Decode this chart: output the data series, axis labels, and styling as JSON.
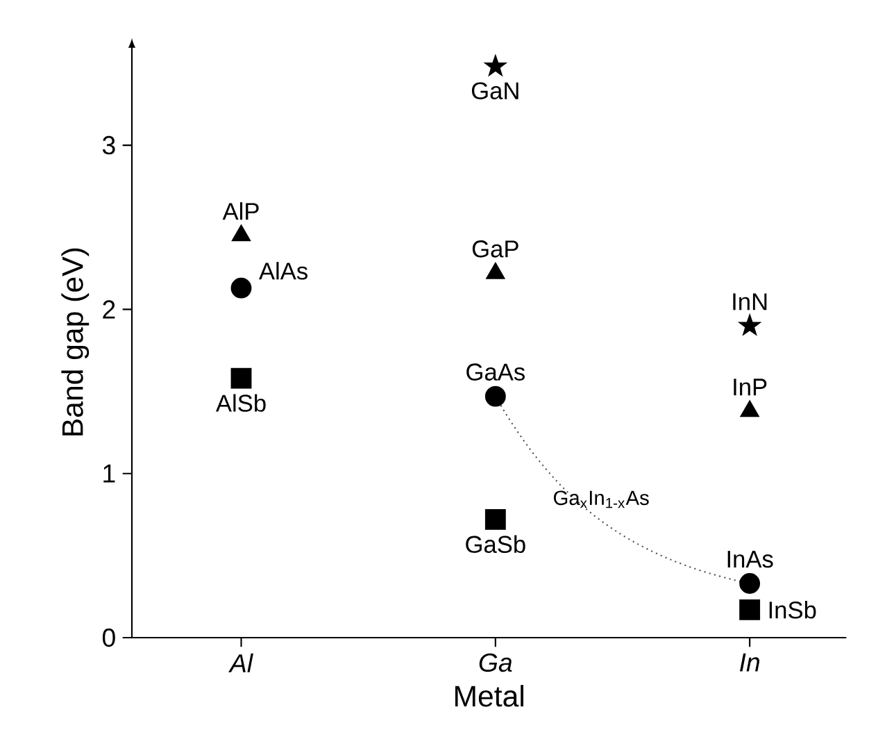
{
  "chart_data": {
    "type": "scatter",
    "xlabel": "Metal",
    "ylabel": "Band gap (eV)",
    "ylim": [
      0,
      3.6
    ],
    "categories": [
      "Al",
      "Ga",
      "In"
    ],
    "yticks": [
      0,
      1,
      2,
      3
    ],
    "grid": false,
    "series": [
      {
        "name": "AlP",
        "color": "#000000",
        "marker": "triangle",
        "values": [
          2.45,
          null,
          null
        ]
      },
      {
        "name": "AlAs",
        "color": "#000000",
        "marker": "circle",
        "values": [
          2.13,
          null,
          null
        ]
      },
      {
        "name": "AlSb",
        "color": "#000000",
        "marker": "square",
        "values": [
          1.58,
          null,
          null
        ]
      },
      {
        "name": "GaN",
        "color": "#000000",
        "marker": "star",
        "values": [
          null,
          3.48,
          null
        ]
      },
      {
        "name": "GaP",
        "color": "#000000",
        "marker": "triangle",
        "values": [
          null,
          2.22,
          null
        ]
      },
      {
        "name": "GaAs",
        "color": "#000000",
        "marker": "circle",
        "values": [
          null,
          1.47,
          null
        ]
      },
      {
        "name": "GaSb",
        "color": "#000000",
        "marker": "square",
        "values": [
          null,
          0.72,
          null
        ]
      },
      {
        "name": "InN",
        "color": "#000000",
        "marker": "star",
        "values": [
          null,
          null,
          1.9
        ]
      },
      {
        "name": "InP",
        "color": "#000000",
        "marker": "triangle",
        "values": [
          null,
          null,
          1.38
        ]
      },
      {
        "name": "InAs",
        "color": "#000000",
        "marker": "circle",
        "values": [
          null,
          null,
          0.33
        ]
      },
      {
        "name": "InSb",
        "color": "#000000",
        "marker": "square",
        "values": [
          null,
          null,
          0.17
        ]
      },
      {
        "name": "Ga$_{x}$In$_{1-x}$As",
        "type": "line",
        "color": "#555555",
        "line_style": "dotted",
        "marker": "none",
        "values": [
          null,
          1.47,
          0.33
        ]
      }
    ]
  }
}
